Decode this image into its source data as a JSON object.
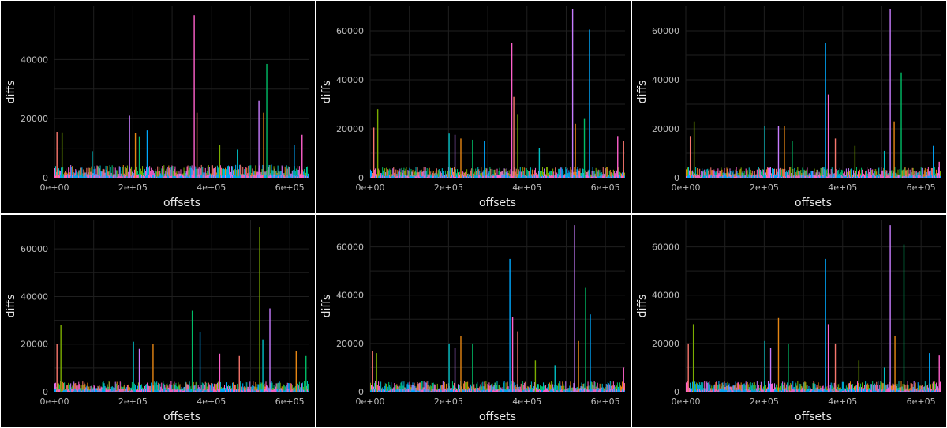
{
  "colors": {
    "background": "#000000",
    "panel_border": "#ffffff",
    "grid": "#1f1f1f",
    "tick_text": "#bdbdbd",
    "axis_title": "#e8e8e8",
    "series_palette": [
      "#F8766D",
      "#7CAE00",
      "#00BFC4",
      "#C77CFF",
      "#E68613",
      "#00BE67",
      "#00A9FF",
      "#FF61CC"
    ]
  },
  "chart_data": [
    {
      "type": "bar",
      "xlabel": "offsets",
      "ylabel": "diffs",
      "xlim": [
        0,
        650000
      ],
      "ylim": [
        0,
        58000
      ],
      "xticks": [
        0,
        200000,
        400000,
        600000
      ],
      "xtick_labels": [
        "0e+00",
        "2e+05",
        "4e+05",
        "6e+05"
      ],
      "yticks": [
        0,
        20000,
        40000
      ],
      "ytick_labels": [
        "0",
        "20000",
        "40000"
      ],
      "grid": true,
      "peaks": [
        [
          5000,
          15500
        ],
        [
          18000,
          15300
        ],
        [
          95000,
          9000
        ],
        [
          190000,
          21000
        ],
        [
          205000,
          15200
        ],
        [
          215000,
          14000
        ],
        [
          235000,
          16000
        ],
        [
          355000,
          55000
        ],
        [
          362000,
          22000
        ],
        [
          420000,
          11000
        ],
        [
          465000,
          9500
        ],
        [
          520000,
          26000
        ],
        [
          532000,
          22000
        ],
        [
          540000,
          38500
        ],
        [
          610000,
          11000
        ],
        [
          630000,
          14500
        ]
      ]
    },
    {
      "type": "bar",
      "xlabel": "offsets",
      "ylabel": "diffs",
      "xlim": [
        0,
        650000
      ],
      "ylim": [
        0,
        70000
      ],
      "xticks": [
        0,
        200000,
        400000,
        600000
      ],
      "xtick_labels": [
        "0e+00",
        "2e+05",
        "4e+05",
        "6e+05"
      ],
      "yticks": [
        0,
        20000,
        40000,
        60000
      ],
      "ytick_labels": [
        "0",
        "20000",
        "40000",
        "60000"
      ],
      "grid": true,
      "peaks": [
        [
          8000,
          20500
        ],
        [
          18000,
          28000
        ],
        [
          200000,
          18000
        ],
        [
          215000,
          17500
        ],
        [
          230000,
          16000
        ],
        [
          260000,
          15500
        ],
        [
          290000,
          15000
        ],
        [
          360000,
          55000
        ],
        [
          365000,
          33000
        ],
        [
          375000,
          26000
        ],
        [
          430000,
          12000
        ],
        [
          515000,
          69000
        ],
        [
          522000,
          22000
        ],
        [
          545000,
          24000
        ],
        [
          558000,
          60500
        ],
        [
          630000,
          17000
        ],
        [
          645000,
          15000
        ]
      ]
    },
    {
      "type": "bar",
      "xlabel": "offsets",
      "ylabel": "diffs",
      "xlim": [
        0,
        650000
      ],
      "ylim": [
        0,
        70000
      ],
      "xticks": [
        0,
        200000,
        400000,
        600000
      ],
      "xtick_labels": [
        "0e+00",
        "2e+05",
        "4e+05",
        "6e+05"
      ],
      "yticks": [
        0,
        20000,
        40000,
        60000
      ],
      "ytick_labels": [
        "0",
        "20000",
        "40000",
        "60000"
      ],
      "grid": true,
      "peaks": [
        [
          10000,
          17000
        ],
        [
          20000,
          23000
        ],
        [
          200000,
          21000
        ],
        [
          235000,
          21000
        ],
        [
          250000,
          21000
        ],
        [
          270000,
          15000
        ],
        [
          355000,
          55000
        ],
        [
          362000,
          34000
        ],
        [
          380000,
          16000
        ],
        [
          430000,
          13000
        ],
        [
          505000,
          11000
        ],
        [
          520000,
          69000
        ],
        [
          530000,
          23000
        ],
        [
          548000,
          43000
        ],
        [
          630000,
          13000
        ],
        [
          645000,
          6500
        ]
      ]
    },
    {
      "type": "bar",
      "xlabel": "offsets",
      "ylabel": "diffs",
      "xlim": [
        0,
        650000
      ],
      "ylim": [
        0,
        72000
      ],
      "xticks": [
        0,
        200000,
        400000,
        600000
      ],
      "xtick_labels": [
        "0e+00",
        "2e+05",
        "4e+05",
        "6e+05"
      ],
      "yticks": [
        0,
        20000,
        40000,
        60000
      ],
      "ytick_labels": [
        "0",
        "20000",
        "40000",
        "60000"
      ],
      "grid": true,
      "peaks": [
        [
          5000,
          20000
        ],
        [
          15000,
          28000
        ],
        [
          200000,
          21000
        ],
        [
          215000,
          18000
        ],
        [
          250000,
          20000
        ],
        [
          350000,
          34000
        ],
        [
          370000,
          25000
        ],
        [
          420000,
          16000
        ],
        [
          470000,
          15000
        ],
        [
          522000,
          69000
        ],
        [
          530000,
          22000
        ],
        [
          548000,
          35000
        ],
        [
          615000,
          17000
        ],
        [
          640000,
          15000
        ]
      ]
    },
    {
      "type": "bar",
      "xlabel": "offsets",
      "ylabel": "diffs",
      "xlim": [
        0,
        650000
      ],
      "ylim": [
        0,
        71000
      ],
      "xticks": [
        0,
        200000,
        400000,
        600000
      ],
      "xtick_labels": [
        "0e+00",
        "2e+05",
        "4e+05",
        "6e+05"
      ],
      "yticks": [
        0,
        20000,
        40000,
        60000
      ],
      "ytick_labels": [
        "0",
        "20000",
        "40000",
        "60000"
      ],
      "grid": true,
      "peaks": [
        [
          5000,
          17000
        ],
        [
          15000,
          16000
        ],
        [
          200000,
          20000
        ],
        [
          215000,
          18000
        ],
        [
          230000,
          23000
        ],
        [
          260000,
          20000
        ],
        [
          355000,
          55000
        ],
        [
          362000,
          31000
        ],
        [
          375000,
          25000
        ],
        [
          420000,
          13000
        ],
        [
          470000,
          11000
        ],
        [
          520000,
          69000
        ],
        [
          530000,
          21000
        ],
        [
          548000,
          43000
        ],
        [
          560000,
          32000
        ],
        [
          645000,
          10000
        ]
      ]
    },
    {
      "type": "bar",
      "xlabel": "offsets",
      "ylabel": "diffs",
      "xlim": [
        0,
        650000
      ],
      "ylim": [
        0,
        71000
      ],
      "xticks": [
        0,
        200000,
        400000,
        600000
      ],
      "xtick_labels": [
        "0e+00",
        "2e+05",
        "4e+05",
        "6e+05"
      ],
      "yticks": [
        0,
        20000,
        40000,
        60000
      ],
      "ytick_labels": [
        "0",
        "20000",
        "40000",
        "60000"
      ],
      "grid": true,
      "peaks": [
        [
          5000,
          20000
        ],
        [
          18000,
          28000
        ],
        [
          200000,
          21000
        ],
        [
          215000,
          18000
        ],
        [
          235000,
          30500
        ],
        [
          260000,
          20000
        ],
        [
          355000,
          55000
        ],
        [
          362000,
          28000
        ],
        [
          380000,
          20000
        ],
        [
          440000,
          13000
        ],
        [
          505000,
          10000
        ],
        [
          520000,
          69000
        ],
        [
          532000,
          23000
        ],
        [
          555000,
          61000
        ],
        [
          620000,
          16000
        ],
        [
          645000,
          15000
        ]
      ]
    }
  ]
}
